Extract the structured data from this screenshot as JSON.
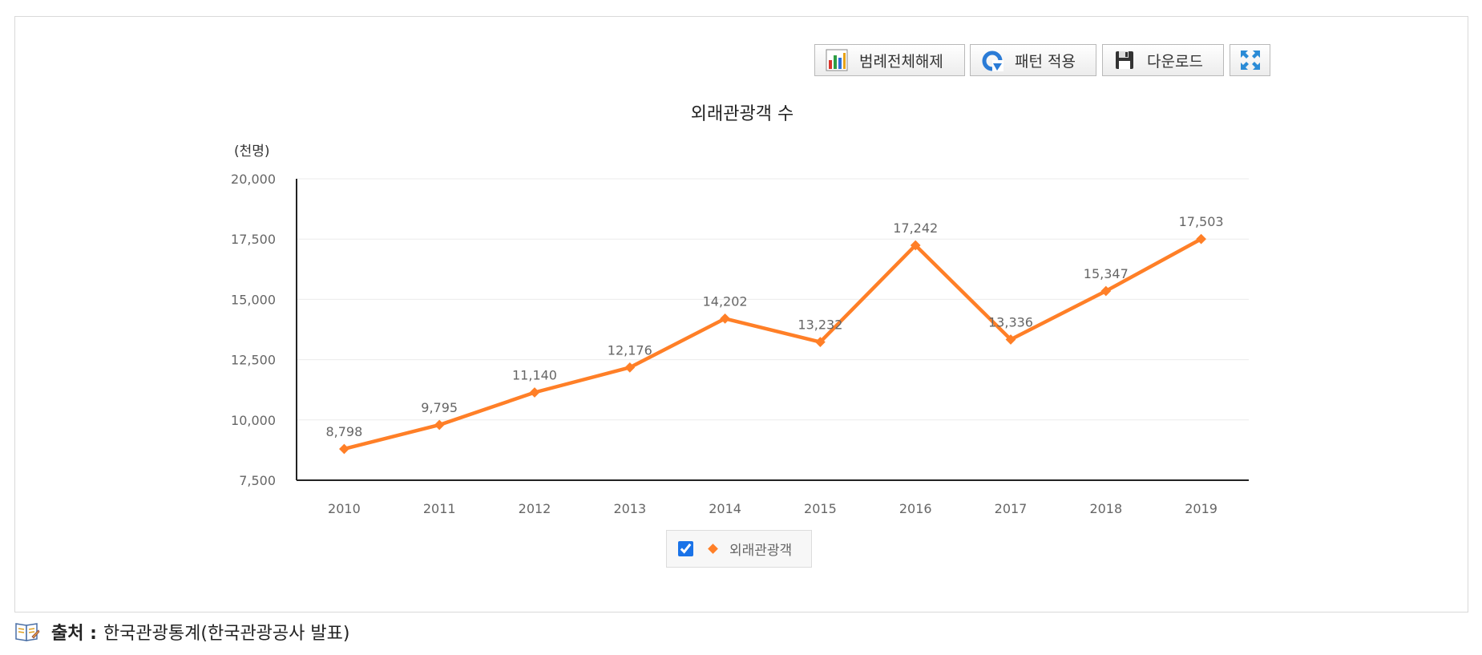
{
  "toolbar": {
    "legend_toggle_label": "범례전체해제",
    "pattern_label": "패턴 적용",
    "download_label": "다운로드",
    "legend_toggle_icon": "bar-chart-icon",
    "pattern_icon": "refresh-icon",
    "download_icon": "floppy-disk-icon",
    "fullscreen_icon": "expand-icon"
  },
  "legend": {
    "checked": true,
    "series_label": "외래관광객"
  },
  "source": {
    "label": "출처 :",
    "text": "한국관광통계(한국관광공사 발표)",
    "icon": "book-icon"
  },
  "colors": {
    "series": "#ff7f27",
    "grid": "#ebebeb",
    "axis": "#222222"
  },
  "chart_data": {
    "type": "line",
    "title": "외래관광객 수",
    "ylabel": "(천명)",
    "xlabel": "",
    "categories": [
      "2010",
      "2011",
      "2012",
      "2013",
      "2014",
      "2015",
      "2016",
      "2017",
      "2018",
      "2019"
    ],
    "series": [
      {
        "name": "외래관광객",
        "values": [
          8798,
          9795,
          11140,
          12176,
          14202,
          13232,
          17242,
          13336,
          15347,
          17503
        ],
        "labels": [
          "8,798",
          "9,795",
          "11,140",
          "12,176",
          "14,202",
          "13,232",
          "17,242",
          "13,336",
          "15,347",
          "17,503"
        ]
      }
    ],
    "ylim": [
      7500,
      20000
    ],
    "yticks": [
      7500,
      10000,
      12500,
      15000,
      17500,
      20000
    ],
    "ytick_labels": [
      "7,500",
      "10,000",
      "12,500",
      "15,000",
      "17,500",
      "20,000"
    ],
    "grid": true,
    "legend_position": "bottom-center",
    "marker": "diamond"
  }
}
